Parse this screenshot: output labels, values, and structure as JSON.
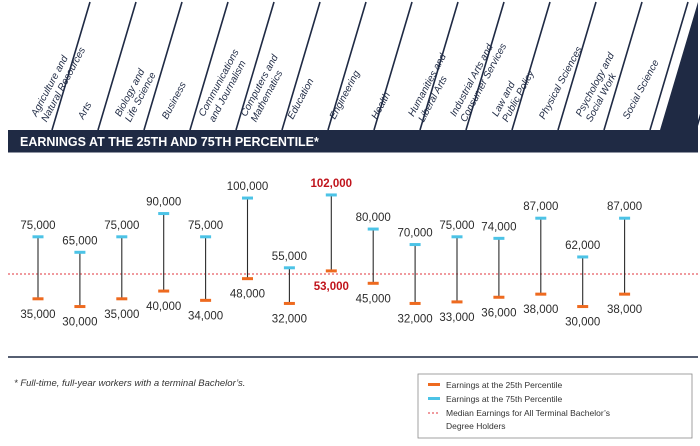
{
  "banner": {
    "title": "EARNINGS AT THE 25TH AND 75TH PERCENTILE*"
  },
  "footnote": "* Full-time, full-year workers with a terminal Bachelor’s.",
  "colors": {
    "navy": "#1f2a44",
    "p25": "#ee6a1f",
    "p75": "#4cc3e6",
    "median": "#e0363c",
    "highlight": "#c0141c"
  },
  "legend": {
    "p25": "Earnings at the 25th Percentile",
    "p75": "Earnings at the 75th Percentile",
    "median_line1": "Median Earnings for All Terminal Bachelor’s",
    "median_line2": "Degree Holders"
  },
  "chart_data": {
    "type": "range",
    "categories": [
      [
        "Agriculture and",
        "Natural Resources"
      ],
      [
        "Arts"
      ],
      [
        "Biology and",
        "Life Science"
      ],
      [
        "Business"
      ],
      [
        "Communications",
        "and Journalism"
      ],
      [
        "Computers and",
        "Mathematics"
      ],
      [
        "Education"
      ],
      [
        "Engineering"
      ],
      [
        "Health"
      ],
      [
        "Humanities and",
        "Liberal Arts"
      ],
      [
        "Industrial Arts and",
        "Consumer Services"
      ],
      [
        "Law and",
        "Public Policy"
      ],
      [
        "Physical Sciences"
      ],
      [
        "Psychology and",
        "Social Work"
      ],
      [
        "Social Science"
      ]
    ],
    "series": [
      {
        "name": "Earnings at the 25th Percentile",
        "values": [
          35000,
          30000,
          35000,
          40000,
          34000,
          48000,
          32000,
          53000,
          45000,
          32000,
          33000,
          36000,
          38000,
          30000,
          38000
        ],
        "labels": [
          "35,000",
          "30,000",
          "35,000",
          "40,000",
          "34,000",
          "48,000",
          "32,000",
          "53,000",
          "45,000",
          "32,000",
          "33,000",
          "36,000",
          "38,000",
          "30,000",
          "38,000"
        ]
      },
      {
        "name": "Earnings at the 75th Percentile",
        "values": [
          75000,
          65000,
          75000,
          90000,
          75000,
          100000,
          55000,
          102000,
          80000,
          70000,
          75000,
          74000,
          87000,
          62000,
          87000
        ],
        "labels": [
          "75,000",
          "65,000",
          "75,000",
          "90,000",
          "75,000",
          "100,000",
          "55,000",
          "102,000",
          "80,000",
          "70,000",
          "75,000",
          "74,000",
          "87,000",
          "62,000",
          "87,000"
        ]
      }
    ],
    "median": 51000,
    "highlight_index": 7
  }
}
